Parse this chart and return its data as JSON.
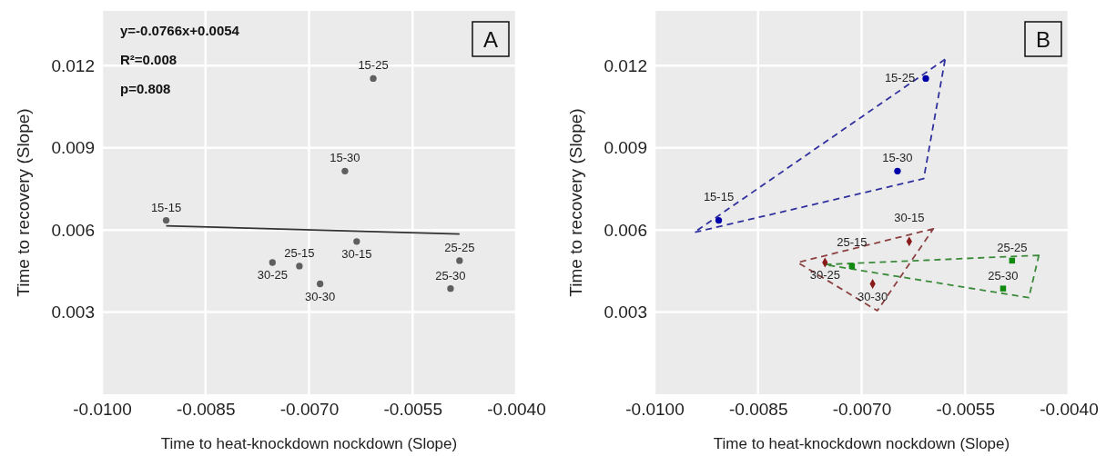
{
  "chart_data": [
    {
      "type": "scatter",
      "title": "A",
      "xlabel": "Time to heat-knockdown nockdown (Slope)",
      "ylabel": "Time to recovery (Slope)",
      "xlim": [
        -0.01,
        -0.004
      ],
      "xticks": [
        {
          "value": -0.01,
          "label": "-0.0100"
        },
        {
          "value": -0.0085,
          "label": "-0.0085"
        },
        {
          "value": -0.007,
          "label": "-0.0070"
        },
        {
          "value": -0.0055,
          "label": "-0.0055"
        },
        {
          "value": -0.004,
          "label": "-0.0040"
        }
      ],
      "ylim": [
        0,
        0.014
      ],
      "yticks": [
        0.003,
        0.006,
        0.009,
        0.012
      ],
      "grid": true,
      "annotations": [
        "y=-0.0766x+0.0054",
        "R²=0.008",
        "p=0.808"
      ],
      "series": [
        {
          "color": "#5f5f5f",
          "marker": "circle",
          "x": [
            -0.00907,
            -0.00607,
            -0.00648,
            -0.00631,
            -0.00714,
            -0.00753,
            -0.00684,
            -0.00482,
            -0.00495
          ],
          "values": [
            0.00635,
            0.01153,
            0.00815,
            0.00558,
            0.00468,
            0.00481,
            0.00403,
            0.00488,
            0.00386
          ],
          "value_labels": [
            "15-15",
            "15-25",
            "15-30",
            "30-15",
            "25-15",
            "30-25",
            "30-30",
            "25-25",
            "25-30"
          ]
        },
        {
          "type": "line",
          "color": "#333333",
          "marker": "none",
          "line_style": "solid",
          "x": [
            -0.00907,
            -0.00482
          ],
          "values": [
            0.00615,
            0.00585
          ]
        }
      ]
    },
    {
      "type": "scatter",
      "title": "B",
      "xlabel": "Time to heat-knockdown nockdown (Slope)",
      "ylabel": "Time to recovery (Slope)",
      "xlim": [
        -0.01,
        -0.004
      ],
      "xticks": [
        {
          "value": -0.01,
          "label": "-0.0100"
        },
        {
          "value": -0.0085,
          "label": "-0.0085"
        },
        {
          "value": -0.007,
          "label": "-0.0070"
        },
        {
          "value": -0.0055,
          "label": "-0.0055"
        },
        {
          "value": -0.004,
          "label": "-0.0040"
        }
      ],
      "ylim": [
        0,
        0.014
      ],
      "yticks": [
        0.003,
        0.006,
        0.009,
        0.012
      ],
      "grid": true,
      "series": [
        {
          "color": "#0000a8",
          "marker": "circle",
          "x": [
            -0.00907,
            -0.00607,
            -0.00648
          ],
          "values": [
            0.00635,
            0.01153,
            0.00815
          ],
          "value_labels": [
            "15-15",
            "15-25",
            "15-30"
          ]
        },
        {
          "color": "#0f8a0f",
          "marker": "square",
          "x": [
            -0.00714,
            -0.00482,
            -0.00495
          ],
          "values": [
            0.00468,
            0.00488,
            0.00386
          ],
          "value_labels": [
            "25-15",
            "25-25",
            "25-30"
          ]
        },
        {
          "color": "#8b1a1a",
          "marker": "diamond",
          "x": [
            -0.00631,
            -0.00753,
            -0.00684
          ],
          "values": [
            0.00558,
            0.00481,
            0.00403
          ],
          "value_labels": [
            "30-15",
            "30-25",
            "30-30"
          ]
        }
      ]
    }
  ]
}
